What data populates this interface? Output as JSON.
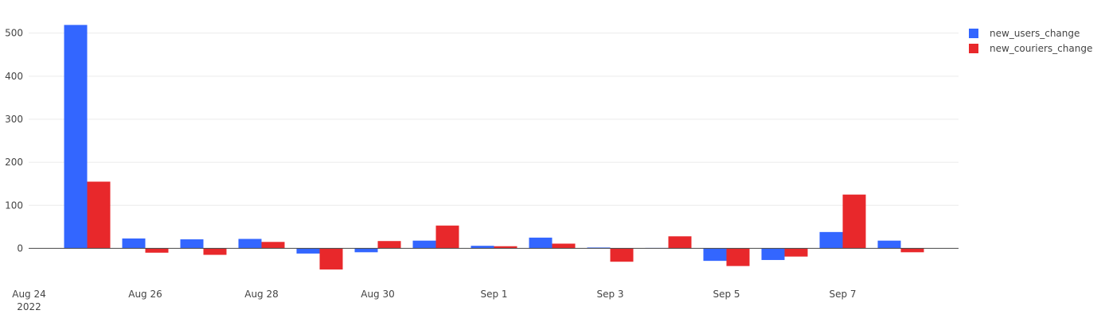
{
  "chart_data": {
    "type": "bar",
    "x": [
      "2022-08-24",
      "2022-08-25",
      "2022-08-26",
      "2022-08-27",
      "2022-08-28",
      "2022-08-29",
      "2022-08-30",
      "2022-08-31",
      "2022-09-01",
      "2022-09-02",
      "2022-09-03",
      "2022-09-04",
      "2022-09-05",
      "2022-09-06",
      "2022-09-07",
      "2022-09-08"
    ],
    "series": [
      {
        "name": "new_users_change",
        "color": "#3366ff",
        "values": [
          0,
          519,
          23,
          21,
          22,
          -12,
          -9,
          18,
          6,
          25,
          2,
          1,
          -29,
          -27,
          38,
          18
        ]
      },
      {
        "name": "new_couriers_change",
        "color": "#e8282b",
        "values": [
          0,
          155,
          -10,
          -15,
          15,
          -49,
          17,
          53,
          5,
          11,
          -31,
          28,
          -41,
          -19,
          125,
          -9
        ]
      }
    ],
    "x_tick_labels": [
      {
        "date": "2022-08-24",
        "line1": "Aug 24",
        "line2": "2022"
      },
      {
        "date": "2022-08-26",
        "line1": "Aug 26",
        "line2": ""
      },
      {
        "date": "2022-08-28",
        "line1": "Aug 28",
        "line2": ""
      },
      {
        "date": "2022-08-30",
        "line1": "Aug 30",
        "line2": ""
      },
      {
        "date": "2022-09-01",
        "line1": "Sep 1",
        "line2": ""
      },
      {
        "date": "2022-09-03",
        "line1": "Sep 3",
        "line2": ""
      },
      {
        "date": "2022-09-05",
        "line1": "Sep 5",
        "line2": ""
      },
      {
        "date": "2022-09-07",
        "line1": "Sep 7",
        "line2": ""
      }
    ],
    "y_ticks": [
      0,
      100,
      200,
      300,
      400,
      500
    ],
    "ylim": [
      -62,
      540
    ],
    "grid": true,
    "legend_position": "top-right"
  }
}
